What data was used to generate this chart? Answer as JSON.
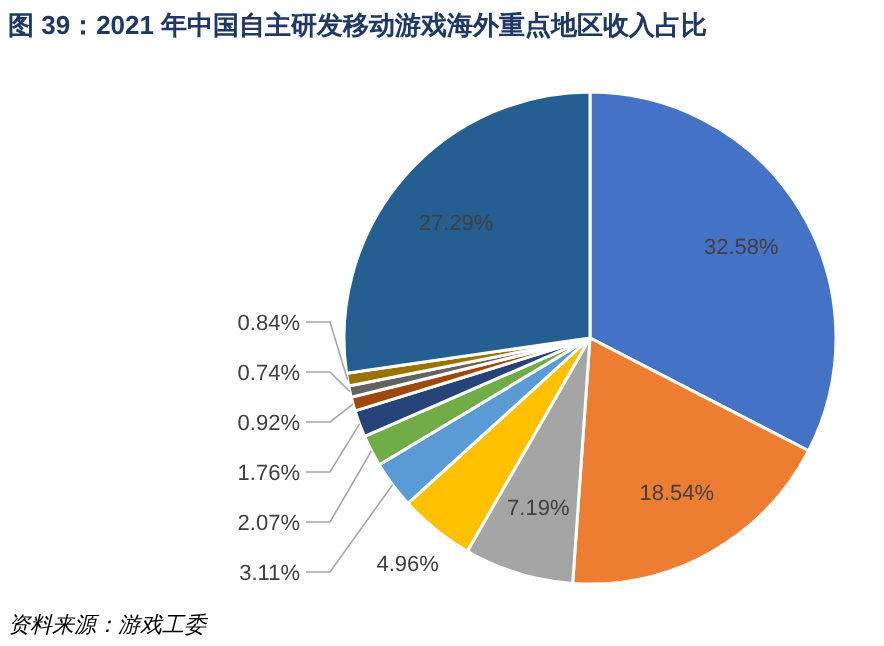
{
  "chart_data": {
    "type": "pie",
    "title": "图 39：2021 年中国自主研发移动游戏海外重点地区收入占比",
    "categories": [
      null,
      null,
      null,
      null,
      null,
      null,
      null,
      null,
      null,
      null,
      null
    ],
    "values": [
      32.58,
      18.54,
      7.19,
      4.96,
      3.11,
      2.07,
      1.76,
      0.92,
      0.74,
      0.84,
      27.29
    ],
    "value_labels": [
      "32.58%",
      "18.54%",
      "7.19%",
      "4.96%",
      "3.11%",
      "2.07%",
      "1.76%",
      "0.92%",
      "0.74%",
      "0.84%",
      "27.29%"
    ],
    "colors": [
      "#4472c4",
      "#ed7d31",
      "#a5a5a5",
      "#ffc000",
      "#5b9bd5",
      "#70ad47",
      "#264478",
      "#9e480e",
      "#636363",
      "#997300",
      "#255e91"
    ],
    "annotations": [
      "资料来源：游戏工委"
    ]
  }
}
